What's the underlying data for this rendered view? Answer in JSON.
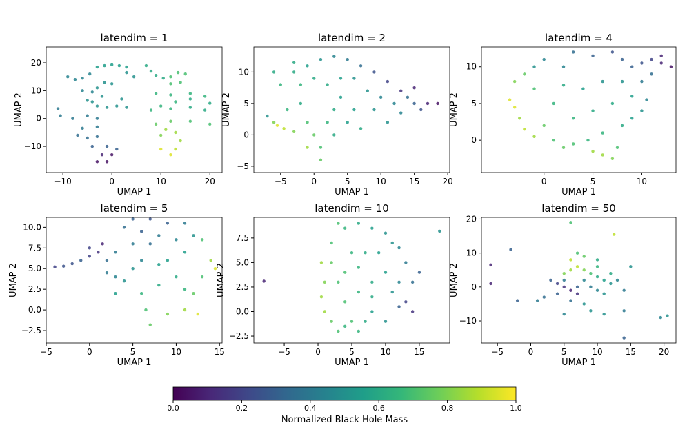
{
  "chart_data": [
    {
      "type": "scatter",
      "title": "latendim = 1",
      "xlabel": "UMAP 1",
      "ylabel": "UMAP 2",
      "xlim": [
        -13.4,
        22.5
      ],
      "ylim": [
        -19.4,
        25.7
      ],
      "xticks": [
        {
          "value": -10,
          "label": "−10"
        },
        0,
        10,
        20
      ],
      "yticks": [
        {
          "value": -10,
          "label": "−10"
        },
        0,
        10,
        20
      ],
      "x": [
        -3,
        -1.5,
        0,
        1.5,
        3,
        -9,
        -7.5,
        -6,
        -4.5,
        3,
        4.5,
        7,
        8,
        9,
        10.5,
        12,
        13.5,
        15,
        14,
        12,
        -3,
        -1.5,
        0,
        -2,
        -4,
        -6,
        -4,
        -5,
        -3,
        -1,
        1,
        3,
        2,
        -11,
        -10.5,
        -8,
        -5,
        -3,
        -3,
        -6,
        -7,
        -5,
        -3,
        -4,
        -1,
        1,
        -2,
        -3,
        -1,
        0,
        8,
        12,
        10,
        16,
        19,
        13,
        16,
        20,
        9,
        12,
        16,
        19,
        9,
        12,
        16,
        20,
        11,
        13,
        10,
        10,
        12,
        13,
        14
      ],
      "y": [
        18.5,
        19,
        19.3,
        19,
        18.5,
        15,
        14,
        14.5,
        16,
        16.5,
        15,
        19,
        17,
        15.5,
        14.5,
        15,
        16.5,
        16,
        13,
        12.5,
        11,
        13,
        12.5,
        8,
        6,
        10,
        9.5,
        6.5,
        4.5,
        4,
        4.5,
        4,
        7,
        3.5,
        1,
        0,
        1,
        0,
        -3,
        -3.5,
        -6,
        -7,
        -6.5,
        -10,
        -10,
        -11,
        -13,
        -15.5,
        -15.5,
        -13,
        3,
        3.5,
        4.5,
        4,
        3,
        6,
        7,
        5.5,
        9,
        8.5,
        9,
        8,
        -2,
        -1,
        -1,
        -2,
        -4,
        -5,
        -6,
        -11,
        -13,
        -11,
        -8
      ],
      "c": [
        0.55,
        0.55,
        0.55,
        0.55,
        0.55,
        0.45,
        0.45,
        0.45,
        0.45,
        0.5,
        0.5,
        0.6,
        0.6,
        0.6,
        0.6,
        0.7,
        0.7,
        0.7,
        0.7,
        0.7,
        0.5,
        0.5,
        0.5,
        0.5,
        0.5,
        0.45,
        0.45,
        0.5,
        0.5,
        0.5,
        0.5,
        0.5,
        0.5,
        0.4,
        0.4,
        0.4,
        0.4,
        0.4,
        0.4,
        0.4,
        0.35,
        0.35,
        0.35,
        0.3,
        0.3,
        0.3,
        0.1,
        0.05,
        0.05,
        0.05,
        0.65,
        0.65,
        0.65,
        0.6,
        0.6,
        0.65,
        0.6,
        0.6,
        0.65,
        0.65,
        0.65,
        0.65,
        0.75,
        0.75,
        0.7,
        0.7,
        0.85,
        0.85,
        0.8,
        0.95,
        0.95,
        0.9,
        0.85
      ]
    },
    {
      "type": "scatter",
      "title": "latendim = 2",
      "xlabel": "UMAP 1",
      "ylabel": "UMAP 2",
      "xlim": [
        -9,
        20.3
      ],
      "ylim": [
        -6,
        14
      ],
      "xticks": [
        {
          "value": -5,
          "label": "−5"
        },
        0,
        5,
        10,
        15,
        20
      ],
      "yticks": [
        {
          "value": -5,
          "label": "−5"
        },
        0,
        5,
        10
      ],
      "x": [
        -7,
        -6,
        -5.5,
        -4.5,
        -3,
        -4,
        -2,
        -1,
        0,
        1,
        1,
        -1,
        2,
        3,
        3,
        4,
        2,
        0,
        -2,
        -3,
        -1,
        1,
        3,
        5,
        7,
        9,
        11,
        6,
        8,
        6,
        9,
        10,
        12,
        13,
        14,
        15,
        16,
        17,
        18.5,
        13,
        15,
        -5,
        -6,
        -3,
        4,
        7,
        5,
        11
      ],
      "y": [
        3,
        2,
        1.5,
        1,
        0.5,
        4,
        5,
        2,
        0,
        -2,
        -4,
        -2,
        2,
        0,
        4,
        6,
        8,
        9,
        8,
        10,
        11,
        12,
        12.5,
        12,
        11,
        10,
        8.5,
        9,
        7,
        4,
        4,
        6,
        5,
        3.5,
        6,
        5,
        4,
        5,
        5,
        7,
        7.5,
        8,
        10,
        11.5,
        9,
        1,
        2,
        2
      ],
      "c": [
        0.5,
        0.8,
        0.95,
        0.9,
        0.8,
        0.65,
        0.6,
        0.7,
        0.75,
        0.7,
        0.75,
        0.85,
        0.65,
        0.6,
        0.6,
        0.55,
        0.6,
        0.6,
        0.65,
        0.6,
        0.55,
        0.5,
        0.45,
        0.4,
        0.35,
        0.25,
        0.2,
        0.5,
        0.5,
        0.55,
        0.5,
        0.45,
        0.45,
        0.45,
        0.35,
        0.3,
        0.25,
        0.1,
        0.05,
        0.15,
        0.1,
        0.65,
        0.6,
        0.6,
        0.55,
        0.6,
        0.55,
        0.5
      ]
    },
    {
      "type": "scatter",
      "title": "latendim = 4",
      "xlabel": "UMAP 1",
      "ylabel": "UMAP 2",
      "xlim": [
        -6.4,
        13.5
      ],
      "ylim": [
        -4.4,
        12.7
      ],
      "xticks": [
        0,
        5,
        10
      ],
      "yticks": [
        0,
        5,
        10
      ],
      "x": [
        -3.5,
        -3,
        -2.5,
        -2,
        -1,
        0,
        1,
        2,
        3,
        4.5,
        5,
        6,
        7,
        7.5,
        6,
        8,
        9,
        10,
        10.5,
        9,
        7,
        5,
        3,
        1,
        -1,
        -2,
        -3,
        -1,
        0,
        2,
        3,
        5,
        7,
        8,
        9,
        10,
        11,
        12,
        13,
        12,
        10,
        11,
        4,
        6,
        2,
        8
      ],
      "y": [
        5.5,
        4.5,
        3,
        1.5,
        0.5,
        2,
        0,
        -1,
        -0.5,
        0,
        -1.5,
        -2,
        -2.5,
        -1,
        1,
        2,
        3,
        4,
        5.5,
        6,
        5,
        4,
        3,
        5,
        7,
        9,
        8,
        10,
        11,
        10,
        12,
        11.5,
        12,
        11,
        10,
        10.5,
        11,
        10.5,
        10,
        11.5,
        8,
        9,
        7,
        8,
        7.5,
        8
      ],
      "c": [
        0.95,
        0.95,
        0.85,
        0.9,
        0.85,
        0.75,
        0.7,
        0.75,
        0.7,
        0.65,
        0.85,
        0.85,
        0.8,
        0.7,
        0.65,
        0.6,
        0.55,
        0.5,
        0.45,
        0.55,
        0.6,
        0.6,
        0.65,
        0.65,
        0.7,
        0.75,
        0.8,
        0.5,
        0.45,
        0.45,
        0.35,
        0.3,
        0.25,
        0.3,
        0.3,
        0.25,
        0.2,
        0.1,
        0.05,
        0.1,
        0.4,
        0.35,
        0.55,
        0.5,
        0.6,
        0.5
      ]
    },
    {
      "type": "scatter",
      "title": "latendim = 5",
      "xlabel": "UMAP 1",
      "ylabel": "UMAP 2",
      "xlim": [
        -5,
        15.3
      ],
      "ylim": [
        -4.0,
        11.2
      ],
      "xticks": [
        {
          "value": -5,
          "label": "−5"
        },
        0,
        5,
        10,
        15
      ],
      "yticks": [
        {
          "value": -2.5,
          "label": "−2.5"
        },
        {
          "value": 0,
          "label": "0.0"
        },
        2.5,
        {
          "value": 5,
          "label": "5.0"
        },
        7.5,
        {
          "value": 10,
          "label": "10.0"
        }
      ],
      "x": [
        -4,
        -3,
        -2,
        -1,
        0,
        1,
        1.5,
        0,
        2,
        3,
        2,
        3,
        4,
        5,
        6,
        7,
        6,
        7,
        9,
        11,
        12,
        13,
        14,
        14.5,
        13,
        12,
        11,
        9,
        7,
        6.5,
        6,
        8,
        10,
        9,
        11,
        10,
        8,
        5,
        4,
        5,
        12.5,
        8,
        11,
        3
      ],
      "y": [
        5.2,
        5.3,
        5.6,
        6,
        6.5,
        7,
        8,
        7.5,
        6,
        7,
        4.5,
        4,
        3.5,
        5,
        6,
        8,
        9.5,
        11,
        10.5,
        10.5,
        9,
        8.5,
        6,
        5,
        4,
        2,
        0,
        -0.5,
        -1.8,
        0,
        2,
        3,
        4,
        6,
        7,
        8.5,
        9,
        8,
        10,
        11,
        -0.5,
        5.5,
        2.5,
        2
      ],
      "c": [
        0.2,
        0.25,
        0.25,
        0.3,
        0.2,
        0.15,
        0.1,
        0.2,
        0.35,
        0.4,
        0.4,
        0.45,
        0.5,
        0.5,
        0.45,
        0.35,
        0.3,
        0.25,
        0.3,
        0.4,
        0.5,
        0.7,
        0.85,
        0.95,
        0.7,
        0.75,
        0.85,
        0.8,
        0.75,
        0.7,
        0.65,
        0.6,
        0.6,
        0.55,
        0.55,
        0.45,
        0.4,
        0.4,
        0.35,
        0.3,
        0.95,
        0.55,
        0.65,
        0.55
      ]
    },
    {
      "type": "scatter",
      "title": "latendim = 10",
      "xlabel": "UMAP 1",
      "ylabel": "UMAP 2",
      "xlim": [
        -9.5,
        19.5
      ],
      "ylim": [
        -3.2,
        9.6
      ],
      "xticks": [
        {
          "value": -5,
          "label": "−5"
        },
        0,
        5,
        10,
        15
      ],
      "yticks": [
        {
          "value": -2.5,
          "label": "−2.5"
        },
        {
          "value": 0,
          "label": "0.0"
        },
        2.5,
        {
          "value": 5,
          "label": "5.0"
        },
        7.5
      ],
      "x": [
        -8,
        18,
        0.5,
        1,
        0.5,
        1,
        2,
        3,
        4,
        5,
        6,
        7,
        8,
        10,
        12,
        13,
        14,
        15,
        14,
        13,
        12,
        11,
        10,
        8,
        6,
        4,
        3,
        2,
        2,
        3,
        4,
        6,
        8,
        10,
        11,
        9,
        7,
        5,
        4,
        12,
        6,
        8
      ],
      "y": [
        3.1,
        8.2,
        5,
        3,
        1.5,
        0,
        -1,
        -2,
        -1.5,
        -1,
        -2,
        -1,
        0,
        -1,
        0.5,
        1,
        0,
        4,
        3,
        5,
        6.5,
        7,
        8,
        8.5,
        9,
        8.5,
        9,
        7,
        5,
        3,
        1,
        2,
        3,
        4,
        2,
        6,
        6,
        6,
        4,
        3,
        4.5,
        1.5
      ],
      "c": [
        0.1,
        0.5,
        0.85,
        0.8,
        0.85,
        0.85,
        0.75,
        0.7,
        0.65,
        0.7,
        0.65,
        0.6,
        0.55,
        0.5,
        0.3,
        0.2,
        0.15,
        0.3,
        0.35,
        0.4,
        0.45,
        0.5,
        0.5,
        0.55,
        0.6,
        0.65,
        0.7,
        0.7,
        0.75,
        0.7,
        0.7,
        0.65,
        0.6,
        0.55,
        0.5,
        0.55,
        0.6,
        0.65,
        0.7,
        0.45,
        0.65,
        0.6
      ]
    },
    {
      "type": "scatter",
      "title": "latendim = 50",
      "xlabel": "UMAP 1",
      "ylabel": "UMAP 2",
      "xlim": [
        -7.4,
        21.8
      ],
      "ylim": [
        -16.5,
        20.5
      ],
      "xticks": [
        {
          "value": -5,
          "label": "−5"
        },
        0,
        5,
        10,
        15,
        20
      ],
      "yticks": [
        {
          "value": -10,
          "label": "−10"
        },
        0,
        10,
        20
      ],
      "x": [
        -6,
        -6,
        -3,
        -2,
        1,
        6,
        12.5,
        4,
        5,
        6,
        7,
        5,
        6,
        7,
        8,
        9,
        10,
        11,
        12,
        13,
        8,
        7,
        9,
        10,
        11,
        6,
        7,
        8,
        10,
        12,
        5,
        4,
        6,
        8,
        9,
        11,
        14,
        14,
        19.5,
        20.5,
        15,
        14,
        3,
        10,
        5,
        2
      ],
      "y": [
        6.5,
        1,
        11,
        -4,
        -4,
        19,
        15.5,
        1,
        0,
        -1,
        -2,
        4,
        5,
        6,
        5,
        4,
        3,
        2,
        1,
        2,
        2,
        0,
        0,
        -1,
        -2,
        8,
        10,
        9,
        6,
        4,
        2,
        -2,
        -4,
        -5,
        -7,
        -8,
        -7,
        -15,
        -9,
        -8.5,
        6,
        -1,
        2,
        8,
        -8,
        -3
      ],
      "c": [
        0.1,
        0.1,
        0.3,
        0.3,
        0.4,
        0.7,
        0.9,
        0.2,
        0.15,
        0.1,
        0.15,
        0.8,
        0.85,
        0.9,
        0.8,
        0.7,
        0.6,
        0.55,
        0.5,
        0.45,
        0.45,
        0.3,
        0.4,
        0.45,
        0.5,
        0.9,
        0.7,
        0.75,
        0.65,
        0.6,
        0.4,
        0.3,
        0.35,
        0.5,
        0.5,
        0.5,
        0.4,
        0.3,
        0.45,
        0.5,
        0.5,
        0.4,
        0.3,
        0.6,
        0.45,
        0.35
      ]
    },
    {
      "type": "colorbar",
      "label": "Normalized Black Hole Mass",
      "lim": [
        0,
        1
      ],
      "ticks": [
        {
          "value": 0,
          "label": "0.0"
        },
        0.2,
        0.4,
        0.6,
        0.8,
        {
          "value": 1,
          "label": "1.0"
        }
      ],
      "colormap": [
        "#440154",
        "#482878",
        "#3e4989",
        "#31688e",
        "#26828e",
        "#1f9e89",
        "#35b779",
        "#6ece58",
        "#b5de2b",
        "#fde725"
      ]
    }
  ]
}
